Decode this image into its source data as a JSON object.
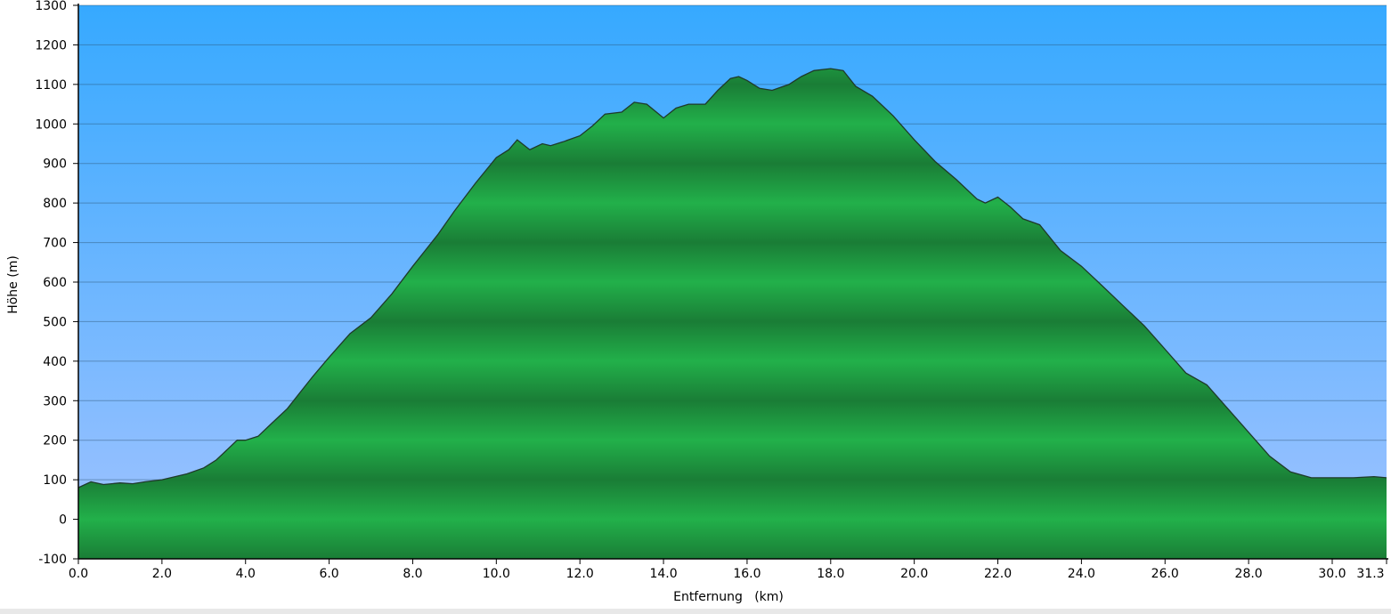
{
  "chart_data": {
    "type": "area",
    "xlabel": "Entfernung   (km)",
    "ylabel": "Höhe (m)",
    "xlim": [
      0,
      31.3
    ],
    "ylim": [
      -100,
      1300
    ],
    "xticks": [
      0,
      2,
      4,
      6,
      8,
      10,
      12,
      14,
      16,
      18,
      20,
      22,
      24,
      26,
      28,
      30,
      31.3
    ],
    "xtick_labels": [
      "0.0",
      "2.0",
      "4.0",
      "6.0",
      "8.0",
      "10.0",
      "12.0",
      "14.0",
      "16.0",
      "18.0",
      "20.0",
      "22.0",
      "24.0",
      "26.0",
      "28.0",
      "30.0",
      "31.3"
    ],
    "yticks": [
      -100,
      0,
      100,
      200,
      300,
      400,
      500,
      600,
      700,
      800,
      900,
      1000,
      1100,
      1200,
      1300
    ],
    "ytick_labels": [
      "-100",
      "0",
      "100",
      "200",
      "300",
      "400",
      "500",
      "600",
      "700",
      "800",
      "900",
      "1000",
      "1100",
      "1200",
      "1300"
    ],
    "grid": true,
    "colors": {
      "sky_top": "#36a9ff",
      "sky_bottom": "#a2c3ff",
      "fill_light": "#22b04a",
      "fill_dark": "#1a7d36",
      "outline": "#1f3a2a"
    },
    "series": [
      {
        "x": [
          0.0,
          0.3,
          0.6,
          1.0,
          1.3,
          1.6,
          2.0,
          2.6,
          3.0,
          3.3,
          3.5,
          3.8,
          4.0,
          4.3,
          4.6,
          5.0,
          5.3,
          5.6,
          6.0,
          6.5,
          7.0,
          7.5,
          8.0,
          8.3,
          8.6,
          9.0,
          9.5,
          10.0,
          10.3,
          10.5,
          10.8,
          11.1,
          11.3,
          11.6,
          12.0,
          12.3,
          12.6,
          13.0,
          13.3,
          13.6,
          14.0,
          14.3,
          14.6,
          15.0,
          15.3,
          15.6,
          15.8,
          16.0,
          16.3,
          16.6,
          17.0,
          17.3,
          17.6,
          18.0,
          18.3,
          18.6,
          19.0,
          19.5,
          20.0,
          20.5,
          21.0,
          21.5,
          21.7,
          22.0,
          22.3,
          22.6,
          23.0,
          23.5,
          24.0,
          24.5,
          25.0,
          25.5,
          26.0,
          26.5,
          27.0,
          27.5,
          28.0,
          28.5,
          29.0,
          29.5,
          30.0,
          30.5,
          31.0,
          31.3
        ],
        "y": [
          80,
          95,
          88,
          92,
          90,
          95,
          100,
          115,
          130,
          150,
          170,
          200,
          200,
          210,
          240,
          280,
          320,
          360,
          410,
          470,
          510,
          570,
          640,
          680,
          720,
          780,
          850,
          915,
          935,
          960,
          935,
          950,
          945,
          955,
          970,
          995,
          1025,
          1030,
          1055,
          1050,
          1015,
          1040,
          1050,
          1050,
          1085,
          1115,
          1120,
          1110,
          1090,
          1085,
          1100,
          1120,
          1135,
          1140,
          1135,
          1095,
          1070,
          1020,
          960,
          905,
          860,
          810,
          800,
          815,
          790,
          760,
          745,
          680,
          640,
          590,
          540,
          490,
          430,
          370,
          340,
          280,
          220,
          160,
          120,
          105,
          105,
          105,
          108,
          105
        ]
      }
    ]
  }
}
